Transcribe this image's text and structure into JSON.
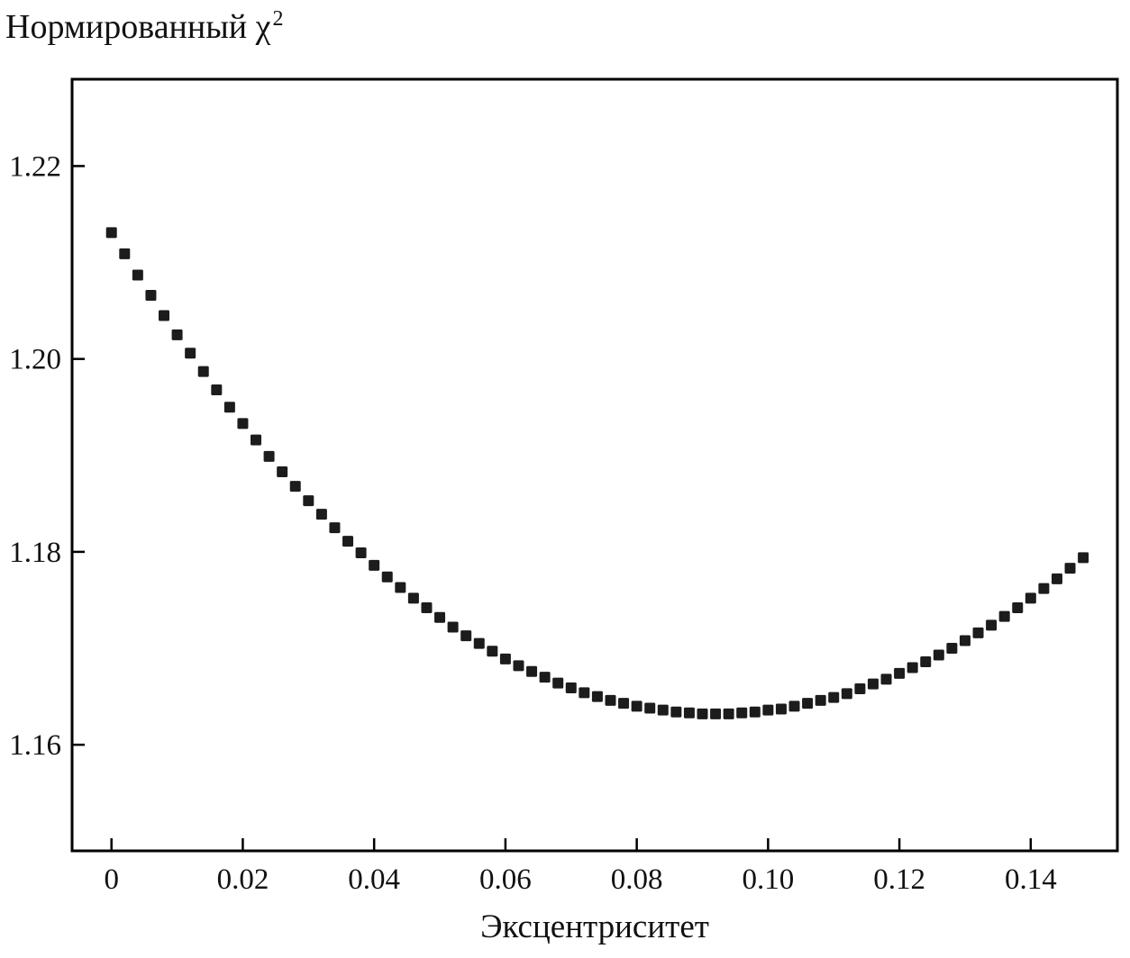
{
  "chart_data": {
    "type": "scatter",
    "title": "Нормированный χ²",
    "title_parts": {
      "main": "Нормированный χ",
      "sup": "2"
    },
    "xlabel": "Эксцентриситет",
    "ylabel": "Нормированный χ²",
    "legend": "none",
    "grid": false,
    "marker": "square",
    "marker_color": "#1c1c1c",
    "marker_size": 12,
    "axis_color": "#000000",
    "background_color": "#ffffff",
    "xlim": [
      -0.006,
      0.1532
    ],
    "ylim": [
      1.149,
      1.229
    ],
    "xticks": [
      {
        "v": 0.0,
        "label": "0"
      },
      {
        "v": 0.02,
        "label": "0.02"
      },
      {
        "v": 0.04,
        "label": "0.04"
      },
      {
        "v": 0.06,
        "label": "0.06"
      },
      {
        "v": 0.08,
        "label": "0.08"
      },
      {
        "v": 0.1,
        "label": "0.10"
      },
      {
        "v": 0.12,
        "label": "0.12"
      },
      {
        "v": 0.14,
        "label": "0.14"
      }
    ],
    "yticks": [
      {
        "v": 1.16,
        "label": "1.16"
      },
      {
        "v": 1.18,
        "label": "1.18"
      },
      {
        "v": 1.2,
        "label": "1.20"
      },
      {
        "v": 1.22,
        "label": "1.22"
      }
    ],
    "x": [
      0.0,
      0.002,
      0.004,
      0.006,
      0.008,
      0.01,
      0.012,
      0.014,
      0.016,
      0.018,
      0.02,
      0.022,
      0.024,
      0.026,
      0.028,
      0.03,
      0.032,
      0.034,
      0.036,
      0.038,
      0.04,
      0.042,
      0.044,
      0.046,
      0.048,
      0.05,
      0.052,
      0.054,
      0.056,
      0.058,
      0.06,
      0.062,
      0.064,
      0.066,
      0.068,
      0.07,
      0.072,
      0.074,
      0.076,
      0.078,
      0.08,
      0.082,
      0.084,
      0.086,
      0.088,
      0.09,
      0.092,
      0.094,
      0.096,
      0.098,
      0.1,
      0.102,
      0.104,
      0.106,
      0.108,
      0.11,
      0.112,
      0.114,
      0.116,
      0.118,
      0.12,
      0.122,
      0.124,
      0.126,
      0.128,
      0.13,
      0.132,
      0.134,
      0.136,
      0.138,
      0.14,
      0.142,
      0.144,
      0.146,
      0.148
    ],
    "y": [
      1.2131,
      1.2109,
      1.2087,
      1.2066,
      1.2045,
      1.2025,
      1.2006,
      1.1987,
      1.1968,
      1.195,
      1.1933,
      1.1916,
      1.1899,
      1.1883,
      1.1868,
      1.1853,
      1.1839,
      1.1825,
      1.1811,
      1.1799,
      1.1786,
      1.1774,
      1.1763,
      1.1752,
      1.1742,
      1.1732,
      1.1722,
      1.1713,
      1.1705,
      1.1697,
      1.1689,
      1.1682,
      1.1676,
      1.167,
      1.1664,
      1.1659,
      1.1654,
      1.165,
      1.1646,
      1.1643,
      1.164,
      1.1638,
      1.1636,
      1.1634,
      1.1633,
      1.1632,
      1.1632,
      1.1632,
      1.1633,
      1.1634,
      1.1636,
      1.1637,
      1.164,
      1.1643,
      1.1646,
      1.1649,
      1.1653,
      1.1658,
      1.1663,
      1.1668,
      1.1674,
      1.168,
      1.1686,
      1.1693,
      1.17,
      1.1708,
      1.1716,
      1.1724,
      1.1733,
      1.1742,
      1.1752,
      1.1762,
      1.1772,
      1.1783,
      1.1794
    ]
  }
}
